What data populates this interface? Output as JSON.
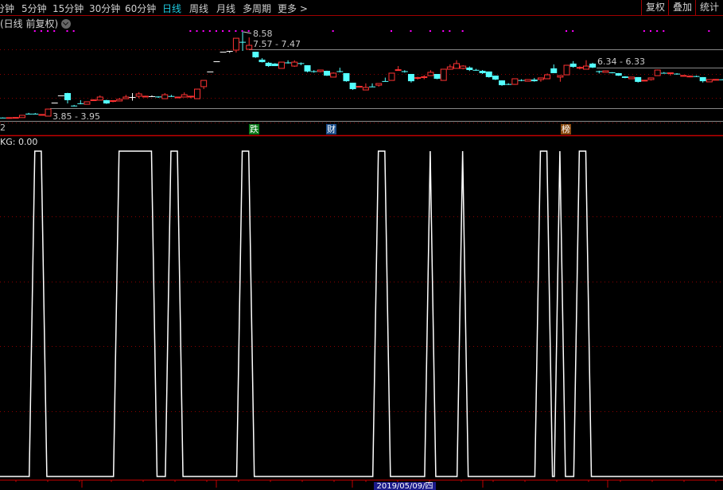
{
  "toolbar": {
    "periods": [
      "分钟",
      "5分钟",
      "15分钟",
      "30分钟",
      "60分钟",
      "日线",
      "周线",
      "月线",
      "多周期",
      "更多 >"
    ],
    "active_period": "日线",
    "right_buttons": [
      "复权",
      "叠加",
      "统计"
    ]
  },
  "chart_header": {
    "title": "(日线 前复权)",
    "menu_icon": "chevron-down-circle-icon"
  },
  "colors": {
    "up": "#ff3232",
    "down": "#54ffff",
    "flat": "#ffffff",
    "signal_dots": "#ff00ff",
    "grid": "#8b0000",
    "kg_line": "#ffffff",
    "border": "#a00000"
  },
  "price_annotations": {
    "high": "8.58",
    "range_top": "7.57 - 7.47",
    "range_mid": "6.34 - 6.33",
    "range_low": "3.85 - 3.95",
    "axis_cut": "2"
  },
  "events": [
    {
      "label": "跌",
      "color": "#0a7a1a",
      "bar": 38
    },
    {
      "label": "财",
      "color": "#1a4d8a",
      "bar": 50
    },
    {
      "label": "榜",
      "color": "#8a4a10",
      "bar": 86
    }
  ],
  "indicator": {
    "label": "KG: 0.00"
  },
  "date_label": "2019/05/09/四",
  "chart_data": [
    {
      "type": "candlestick",
      "fields": [
        "open",
        "close",
        "high",
        "low"
      ],
      "candles": [
        [
          3.37,
          3.36,
          3.38,
          3.35
        ],
        [
          3.36,
          3.37,
          3.38,
          3.35
        ],
        [
          3.35,
          3.38,
          3.39,
          3.35
        ],
        [
          3.37,
          3.51,
          3.52,
          3.36
        ],
        [
          3.61,
          3.6,
          3.66,
          3.58
        ],
        [
          3.61,
          3.6,
          3.65,
          3.58
        ],
        [
          3.52,
          3.56,
          3.58,
          3.52
        ],
        [
          3.46,
          3.89,
          3.9,
          3.45
        ],
        [
          4.28,
          4.28,
          4.28,
          4.28
        ],
        [
          4.72,
          4.72,
          4.72,
          4.72
        ],
        [
          4.86,
          4.43,
          4.88,
          4.23
        ],
        [
          4.1,
          4.07,
          4.14,
          4.05
        ],
        [
          4.24,
          4.22,
          4.43,
          4.18
        ],
        [
          4.18,
          4.33,
          4.35,
          4.17
        ],
        [
          4.4,
          4.45,
          4.48,
          4.38
        ],
        [
          4.43,
          4.62,
          4.72,
          4.41
        ],
        [
          4.43,
          4.23,
          4.45,
          4.2
        ],
        [
          4.36,
          4.4,
          4.41,
          4.3
        ],
        [
          4.38,
          4.48,
          4.56,
          4.36
        ],
        [
          4.52,
          4.62,
          4.75,
          4.5
        ],
        [
          4.62,
          4.62,
          4.86,
          4.4
        ],
        [
          4.67,
          4.81,
          4.92,
          4.55
        ],
        [
          4.65,
          4.67,
          4.7,
          4.64
        ],
        [
          4.67,
          4.67,
          4.72,
          4.65
        ],
        [
          4.65,
          4.6,
          4.66,
          4.57
        ],
        [
          4.52,
          4.76,
          4.86,
          4.5
        ],
        [
          4.68,
          4.65,
          4.75,
          4.63
        ],
        [
          4.6,
          4.62,
          4.63,
          4.55
        ],
        [
          4.62,
          4.76,
          4.9,
          4.6
        ],
        [
          4.64,
          4.67,
          4.68,
          4.55
        ],
        [
          4.52,
          5.1,
          5.12,
          4.5
        ],
        [
          5.25,
          5.63,
          5.63,
          5.1
        ],
        [
          6.17,
          6.17,
          6.17,
          6.17
        ],
        [
          6.79,
          6.79,
          6.79,
          6.79
        ],
        [
          7.37,
          7.37,
          7.37,
          7.37
        ],
        [
          7.42,
          7.42,
          7.42,
          7.3
        ],
        [
          7.47,
          8.19,
          8.19,
          7.32
        ],
        [
          7.97,
          7.93,
          8.58,
          7.42
        ],
        [
          7.52,
          7.76,
          8.24,
          7.5
        ],
        [
          7.37,
          7.03,
          7.37,
          7.0
        ],
        [
          6.89,
          6.74,
          6.98,
          6.72
        ],
        [
          6.7,
          6.5,
          6.75,
          6.45
        ],
        [
          6.65,
          6.5,
          6.68,
          6.5
        ],
        [
          6.36,
          6.74,
          6.74,
          6.36
        ],
        [
          6.72,
          6.68,
          6.85,
          6.65
        ],
        [
          6.5,
          6.74,
          6.85,
          6.45
        ],
        [
          6.68,
          6.63,
          6.72,
          6.55
        ],
        [
          6.55,
          6.17,
          6.55,
          6.12
        ],
        [
          6.19,
          6.15,
          6.25,
          6.1
        ],
        [
          6.17,
          6.26,
          6.28,
          6.12
        ],
        [
          6.21,
          5.92,
          6.22,
          5.9
        ],
        [
          5.83,
          6.07,
          6.12,
          5.83
        ],
        [
          6.19,
          6.15,
          6.4,
          6.12
        ],
        [
          6.07,
          5.58,
          6.07,
          5.55
        ],
        [
          5.49,
          5.1,
          5.49,
          5.05
        ],
        [
          5.22,
          5.27,
          5.3,
          5.2
        ],
        [
          5.05,
          5.2,
          5.45,
          5.05
        ],
        [
          5.26,
          5.24,
          5.45,
          5.22
        ],
        [
          5.34,
          5.44,
          5.46,
          5.25
        ],
        [
          5.59,
          5.57,
          5.8,
          5.57
        ],
        [
          5.63,
          6.07,
          6.07,
          5.63
        ],
        [
          6.24,
          6.28,
          6.5,
          6.22
        ],
        [
          6.19,
          6.14,
          6.25,
          6.1
        ],
        [
          6.02,
          5.58,
          6.02,
          5.5
        ],
        [
          5.75,
          5.8,
          5.85,
          5.68
        ],
        [
          5.8,
          5.85,
          5.95,
          5.7
        ],
        [
          5.92,
          6.12,
          6.25,
          5.92
        ],
        [
          6.02,
          5.73,
          6.02,
          5.7
        ],
        [
          5.63,
          6.31,
          6.31,
          5.63
        ],
        [
          6.31,
          6.45,
          6.6,
          6.28
        ],
        [
          6.36,
          6.65,
          6.85,
          6.36
        ],
        [
          6.36,
          6.5,
          6.55,
          6.3
        ],
        [
          6.41,
          6.26,
          6.48,
          6.2
        ],
        [
          6.27,
          6.24,
          6.33,
          6.22
        ],
        [
          6.21,
          6.07,
          6.26,
          6.02
        ],
        [
          6.17,
          5.83,
          6.17,
          5.8
        ],
        [
          5.92,
          5.68,
          5.92,
          5.65
        ],
        [
          5.63,
          5.34,
          5.63,
          5.3
        ],
        [
          5.41,
          5.38,
          5.46,
          5.35
        ],
        [
          5.39,
          5.73,
          5.73,
          5.36
        ],
        [
          5.65,
          5.62,
          5.7,
          5.58
        ],
        [
          5.58,
          5.68,
          5.7,
          5.58
        ],
        [
          5.68,
          5.58,
          5.78,
          5.55
        ],
        [
          5.68,
          5.78,
          5.8,
          5.55
        ],
        [
          5.73,
          5.97,
          6.05,
          5.73
        ],
        [
          6.36,
          6.07,
          6.6,
          6.07
        ],
        [
          5.83,
          5.92,
          5.95,
          5.55
        ],
        [
          5.97,
          6.55,
          6.55,
          5.97
        ],
        [
          6.65,
          6.45,
          6.8,
          6.4
        ],
        [
          6.38,
          6.42,
          6.48,
          6.3
        ],
        [
          6.31,
          6.5,
          6.85,
          6.31
        ],
        [
          6.65,
          6.41,
          6.7,
          6.38
        ],
        [
          6.19,
          6.15,
          6.22,
          6.05
        ],
        [
          6.12,
          6.21,
          6.22,
          6.12
        ],
        [
          6.12,
          6.07,
          6.13,
          6.06
        ],
        [
          6.07,
          5.92,
          6.08,
          5.9
        ],
        [
          5.87,
          5.78,
          5.89,
          5.76
        ],
        [
          5.73,
          5.83,
          5.84,
          5.72
        ],
        [
          5.83,
          5.54,
          5.83,
          5.5
        ],
        [
          5.61,
          5.64,
          5.66,
          5.58
        ],
        [
          5.68,
          5.78,
          5.8,
          5.62
        ],
        [
          5.92,
          6.26,
          6.29,
          5.92
        ],
        [
          6.09,
          6.06,
          6.14,
          6.05
        ],
        [
          6.05,
          6.09,
          6.1,
          5.92
        ],
        [
          6.04,
          6.01,
          6.07,
          5.98
        ],
        [
          5.91,
          5.93,
          5.94,
          5.9
        ],
        [
          5.86,
          5.89,
          5.93,
          5.82
        ],
        [
          5.89,
          5.86,
          5.92,
          5.84
        ],
        [
          5.83,
          5.58,
          5.83,
          5.5
        ],
        [
          5.54,
          5.68,
          5.69,
          5.54
        ],
        [
          5.66,
          5.69,
          5.71,
          5.65
        ],
        [
          5.69,
          5.67,
          5.7,
          5.66
        ]
      ],
      "flat_white_bars": [
        8,
        9,
        20,
        23,
        32,
        33,
        34,
        35
      ],
      "signal_dot_bars": [
        5,
        6,
        7,
        8,
        10,
        11,
        29,
        30,
        31,
        32,
        33,
        34,
        35,
        36,
        37,
        38,
        51,
        60,
        63,
        66,
        68,
        69,
        71,
        87,
        88,
        99,
        100,
        101,
        102,
        109
      ],
      "ylim": [
        3.3,
        8.6
      ]
    },
    {
      "type": "line",
      "name": "KG",
      "ylim": [
        0,
        1
      ],
      "high_ranges": [
        [
          5,
          6
        ],
        [
          18,
          23
        ],
        [
          26,
          27
        ],
        [
          37,
          38
        ],
        [
          58,
          59
        ],
        [
          66,
          66
        ],
        [
          71,
          71
        ],
        [
          83,
          84
        ],
        [
          86,
          86
        ],
        [
          89,
          90
        ]
      ]
    }
  ]
}
